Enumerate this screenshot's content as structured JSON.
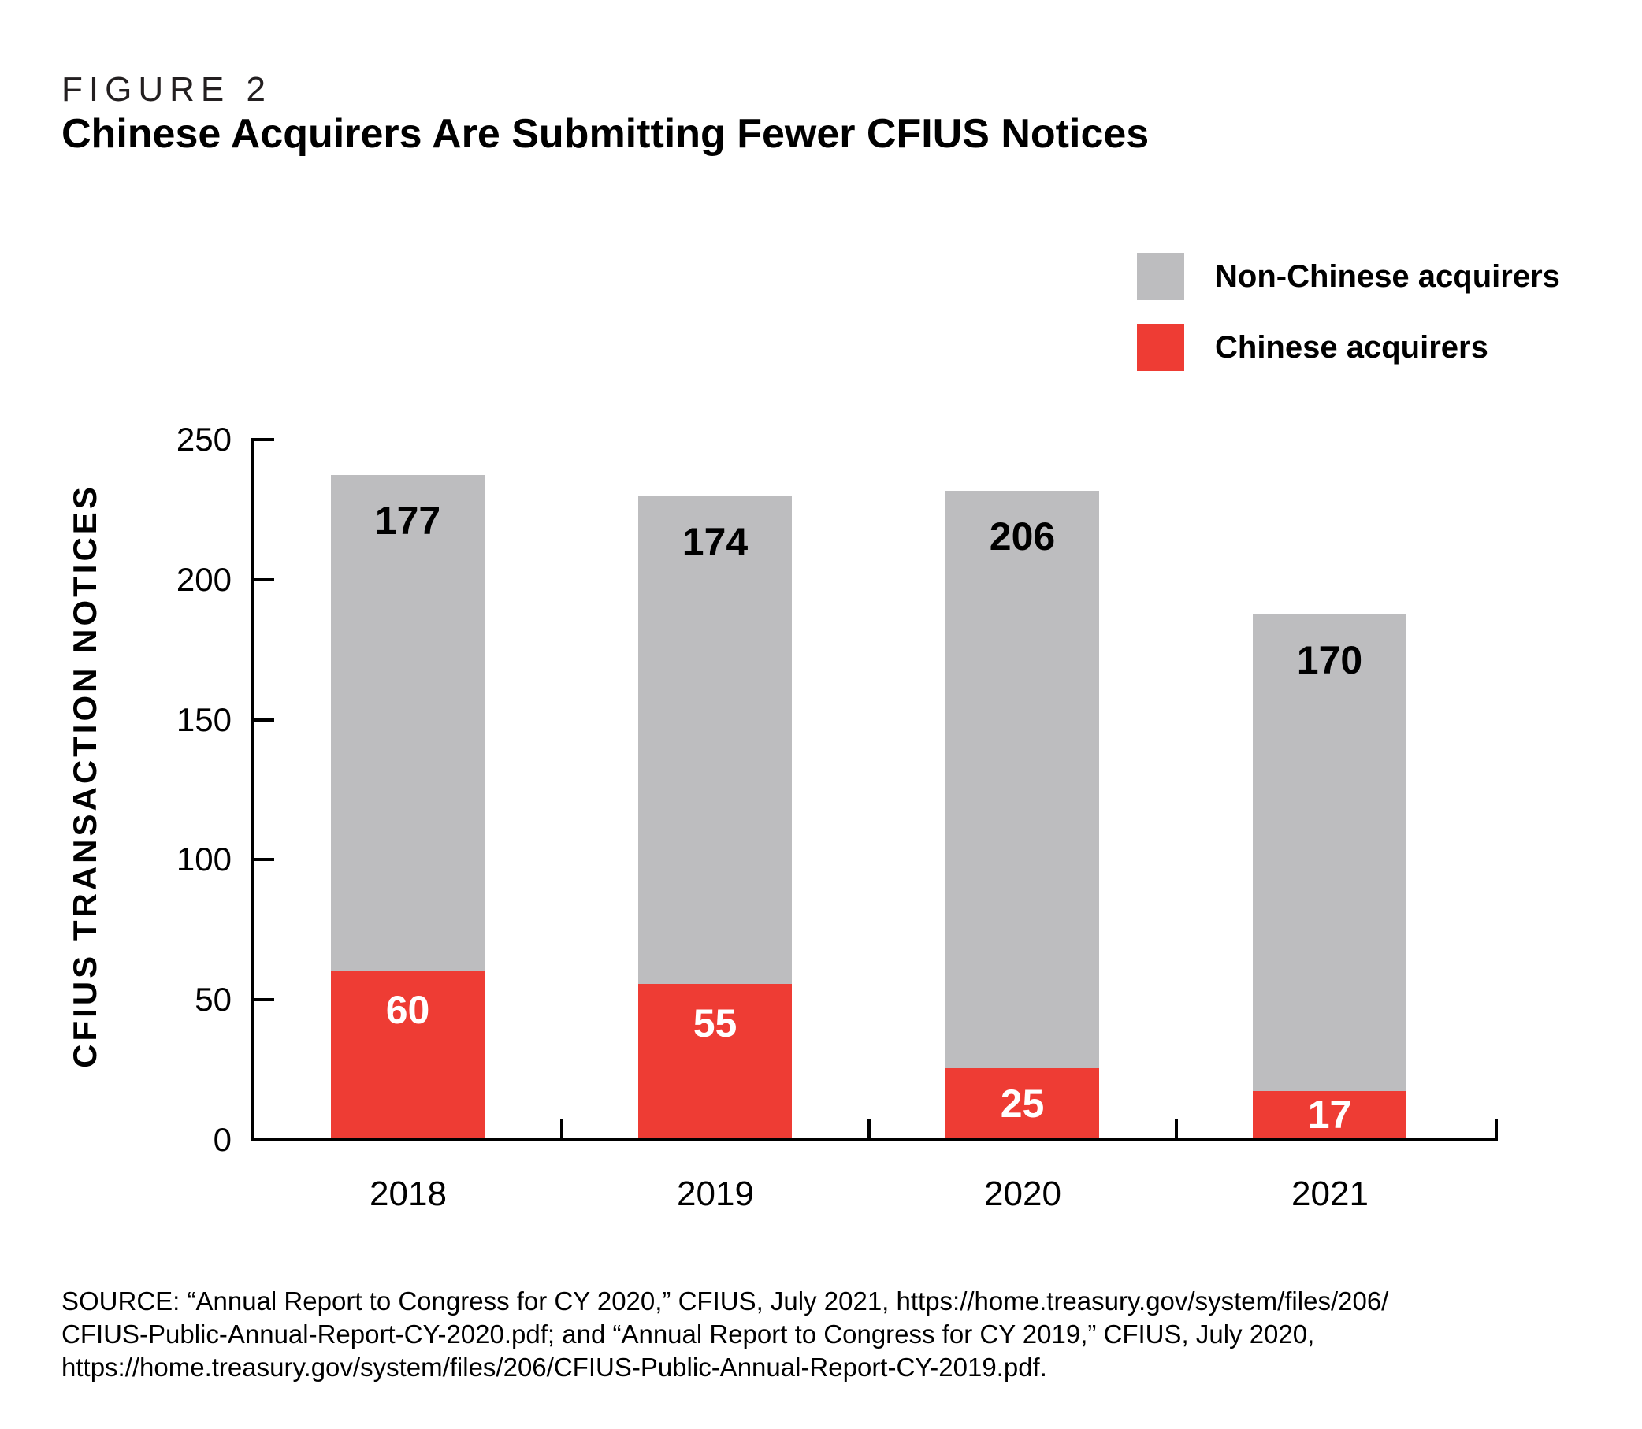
{
  "figure": {
    "label": "FIGURE 2",
    "title": "Chinese Acquirers Are Submitting Fewer CFIUS Notices"
  },
  "legend": {
    "items": [
      {
        "label": "Non-Chinese acquirers",
        "color": "#bdbdbf"
      },
      {
        "label": "Chinese acquirers",
        "color": "#ee3c34"
      }
    ]
  },
  "chart_data": {
    "type": "bar",
    "stacked": true,
    "categories": [
      "2018",
      "2019",
      "2020",
      "2021"
    ],
    "series": [
      {
        "name": "Chinese acquirers",
        "color": "#ee3c34",
        "label_color": "#ffffff",
        "values": [
          60,
          55,
          25,
          17
        ]
      },
      {
        "name": "Non-Chinese acquirers",
        "color": "#bdbdbf",
        "label_color": "#000000",
        "values": [
          177,
          174,
          206,
          170
        ]
      }
    ],
    "totals": [
      237,
      229,
      231,
      187
    ],
    "title": "Chinese Acquirers Are Submitting Fewer CFIUS Notices",
    "xlabel": "",
    "ylabel": "CFIUS TRANSACTION NOTICES",
    "ylim": [
      0,
      250
    ],
    "yticks": [
      0,
      50,
      100,
      150,
      200,
      250
    ],
    "legend_position": "top-right",
    "grid": false,
    "axis_color": "#000000"
  },
  "source": {
    "lines": [
      "SOURCE: “Annual Report to Congress for CY 2020,” CFIUS, July 2021, https://home.treasury.gov/system/files/206/",
      "CFIUS-Public-Annual-Report-CY-2020.pdf; and “Annual Report to Congress for CY 2019,” CFIUS, July 2020,",
      "https://home.treasury.gov/system/files/206/CFIUS-Public-Annual-Report-CY-2019.pdf."
    ]
  }
}
